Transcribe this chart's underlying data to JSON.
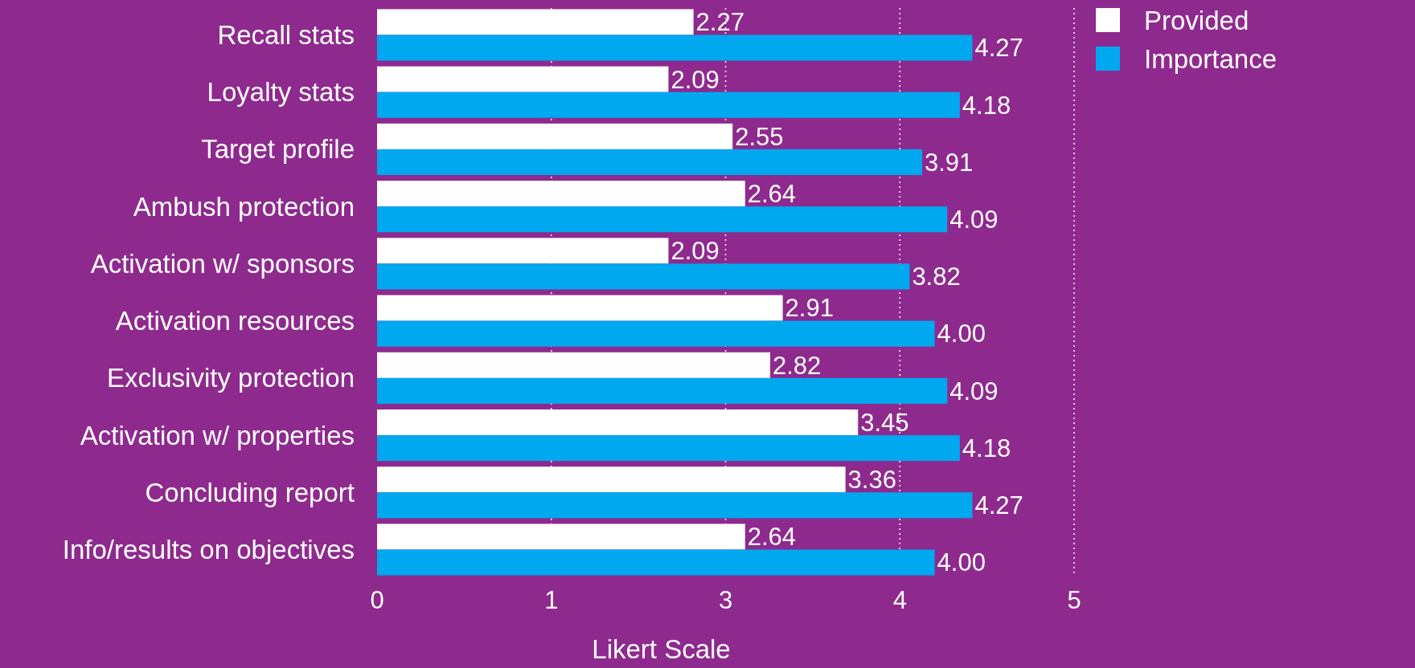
{
  "chart_data": {
    "type": "bar",
    "orientation": "horizontal",
    "xlabel": "Likert Scale",
    "categories": [
      "Recall stats",
      "Loyalty stats",
      "Target profile",
      "Ambush protection",
      "Activation w/ sponsors",
      "Activation resources",
      "Exclusivity protection",
      "Activation w/ properties",
      "Concluding report",
      "Info/results on objectives"
    ],
    "series": [
      {
        "name": "Provided",
        "color": "#ffffff",
        "values": [
          2.27,
          2.09,
          2.55,
          2.64,
          2.09,
          2.91,
          2.82,
          3.45,
          3.36,
          2.64
        ],
        "value_labels": [
          "2.27",
          "2.09",
          "2.55",
          "2.64",
          "2.09",
          "2.91",
          "2.82",
          "3.45",
          "3.36",
          "2.64"
        ]
      },
      {
        "name": "Importance",
        "color": "#00a8f0",
        "values": [
          4.27,
          4.18,
          3.91,
          4.09,
          3.82,
          4.0,
          4.09,
          4.18,
          4.27,
          4.0
        ],
        "value_labels": [
          "4.27",
          "4.18",
          "3.91",
          "4.09",
          "3.82",
          "4.00",
          "4.09",
          "4.18",
          "4.27",
          "4.00"
        ]
      }
    ],
    "xlim": [
      0,
      5
    ],
    "xticks": [
      0,
      {
        "value": 1.25,
        "label": "1"
      },
      {
        "value": 2.5,
        "label": "3"
      },
      {
        "value": 3.75,
        "label": "4"
      },
      5
    ],
    "grid": "x",
    "legend": "top right"
  }
}
